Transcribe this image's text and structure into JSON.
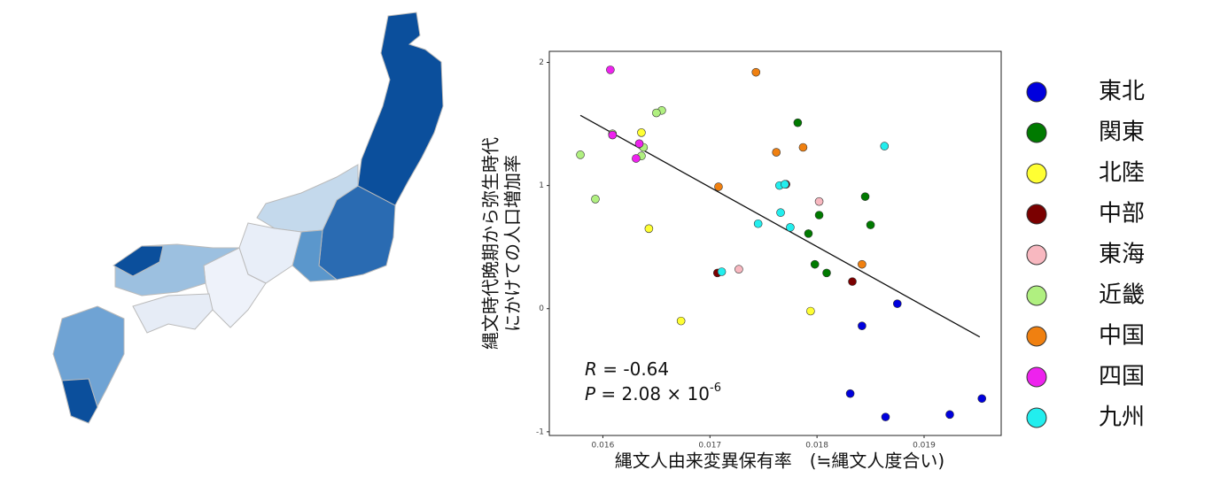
{
  "chart_data": {
    "type": "scatter",
    "x_label": "縄文人由来変異保有率　(≒縄文人度合い)",
    "y_label": [
      "縄文時代晩期から弥生時代",
      "にかけての人口増加率"
    ],
    "annotations": [
      [
        "R",
        " = -0.64"
      ],
      [
        "P",
        " = 2.08 × 10",
        "-6"
      ]
    ],
    "xlim": [
      0.0155,
      0.01972
    ],
    "ylim": [
      -1.03,
      2.09
    ],
    "xticks": [
      0.016,
      0.017,
      0.018,
      0.019
    ],
    "yticks": [
      -1,
      0,
      1,
      2
    ],
    "trend_line": {
      "x": [
        0.01579,
        0.01952
      ],
      "y": [
        1.57,
        -0.23
      ]
    },
    "series": [
      {
        "name": "東北",
        "color": "#0000dd",
        "x": [
          0.01875,
          0.01842,
          0.01831,
          0.01864,
          0.01924,
          0.01954
        ],
        "y": [
          0.04,
          -0.14,
          -0.69,
          -0.88,
          -0.86,
          -0.73
        ]
      },
      {
        "name": "関東",
        "color": "#007a00",
        "x": [
          0.01782,
          0.01845,
          0.01802,
          0.0185,
          0.01792,
          0.01798,
          0.01809
        ],
        "y": [
          1.51,
          0.91,
          0.76,
          0.68,
          0.61,
          0.36,
          0.29
        ]
      },
      {
        "name": "北陸",
        "color": "#ffff33",
        "x": [
          0.01636,
          0.01643,
          0.01673,
          0.01794
        ],
        "y": [
          1.43,
          0.65,
          -0.1,
          -0.02
        ]
      },
      {
        "name": "中部",
        "color": "#7a0000",
        "x": [
          0.01771,
          0.01707,
          0.01833
        ],
        "y": [
          1.01,
          0.29,
          0.22
        ]
      },
      {
        "name": "東海",
        "color": "#f8b8c0",
        "x": [
          0.01802,
          0.01727
        ],
        "y": [
          0.87,
          0.32
        ]
      },
      {
        "name": "近畿",
        "color": "#b0f080",
        "x": [
          0.01655,
          0.0165,
          0.01579,
          0.01609,
          0.01638,
          0.01636,
          0.01593
        ],
        "y": [
          1.61,
          1.59,
          1.25,
          1.42,
          1.31,
          1.24,
          0.89
        ]
      },
      {
        "name": "中国",
        "color": "#f08010",
        "x": [
          0.01743,
          0.01787,
          0.01762,
          0.01708,
          0.01842
        ],
        "y": [
          1.92,
          1.31,
          1.27,
          0.99,
          0.36
        ]
      },
      {
        "name": "四国",
        "color": "#ee22ee",
        "x": [
          0.01607,
          0.01609,
          0.01631,
          0.01634
        ],
        "y": [
          1.94,
          1.41,
          1.22,
          1.34
        ]
      },
      {
        "name": "九州",
        "color": "#22eeee",
        "x": [
          0.01863,
          0.01765,
          0.0177,
          0.01766,
          0.01775,
          0.01745,
          0.01711
        ],
        "y": [
          1.32,
          1.0,
          1.01,
          0.78,
          0.66,
          0.69,
          0.3
        ]
      }
    ]
  }
}
